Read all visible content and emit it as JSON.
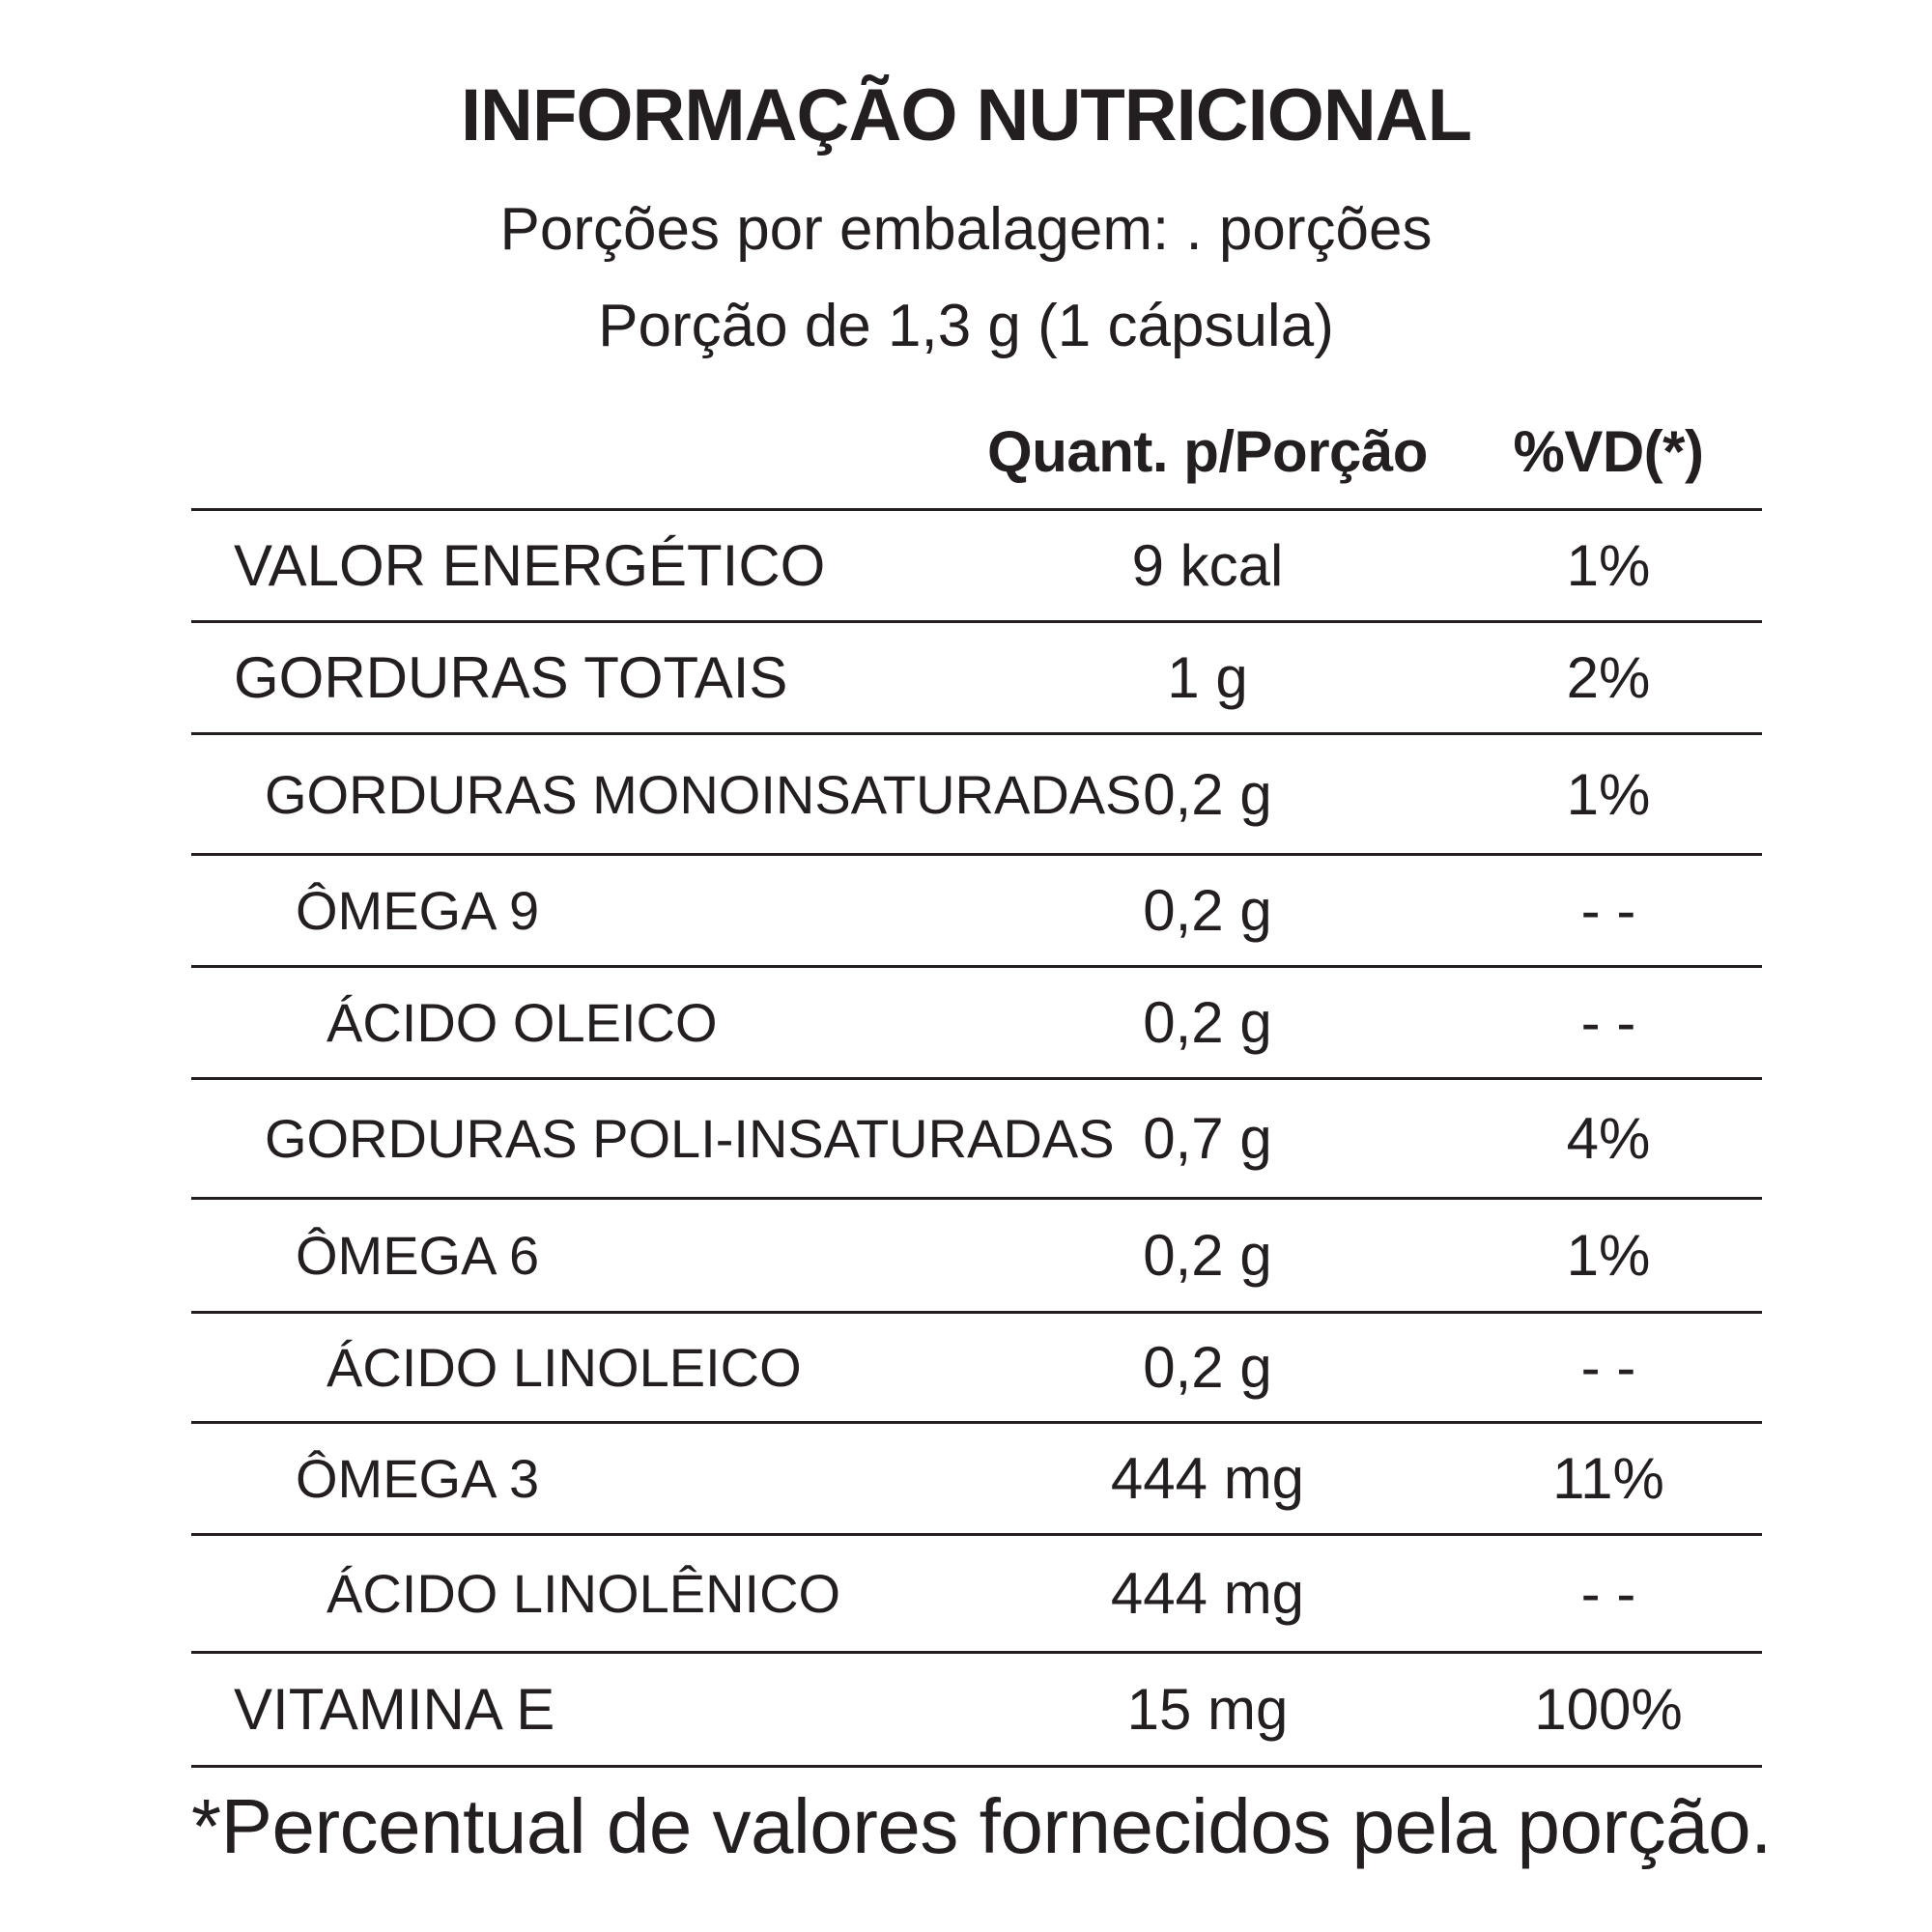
{
  "title": "INFORMAÇÃO NUTRICIONAL",
  "servings_per_package": "Porções por embalagem: . porções",
  "serving_size": "Porção de 1,3 g (1 cápsula)",
  "columns": {
    "quantity": "Quant. p/Porção",
    "daily_value": "%VD(*)"
  },
  "rows": [
    {
      "name": "VALOR ENERGÉTICO",
      "quantity": "9 kcal",
      "dv": "1%"
    },
    {
      "name": "GORDURAS TOTAIS",
      "quantity": "1 g",
      "dv": "2%"
    },
    {
      "name": "GORDURAS MONOINSATURADAS",
      "quantity": "0,2 g",
      "dv": "1%"
    },
    {
      "name": "ÔMEGA 9",
      "quantity": "0,2 g",
      "dv": "- -"
    },
    {
      "name": "ÁCIDO OLEICO",
      "quantity": "0,2 g",
      "dv": "- -"
    },
    {
      "name": "GORDURAS POLI-INSATURADAS",
      "quantity": "0,7 g",
      "dv": "4%"
    },
    {
      "name": "ÔMEGA 6",
      "quantity": "0,2 g",
      "dv": "1%"
    },
    {
      "name": "ÁCIDO LINOLEICO",
      "quantity": "0,2 g",
      "dv": "- -"
    },
    {
      "name": "ÔMEGA 3",
      "quantity": "444 mg",
      "dv": "11%"
    },
    {
      "name": "ÁCIDO LINOLÊNICO",
      "quantity": "444 mg",
      "dv": "- -"
    },
    {
      "name": "VITAMINA E",
      "quantity": "15 mg",
      "dv": "100%"
    }
  ],
  "footnote": "*Percentual de valores fornecidos pela porção."
}
